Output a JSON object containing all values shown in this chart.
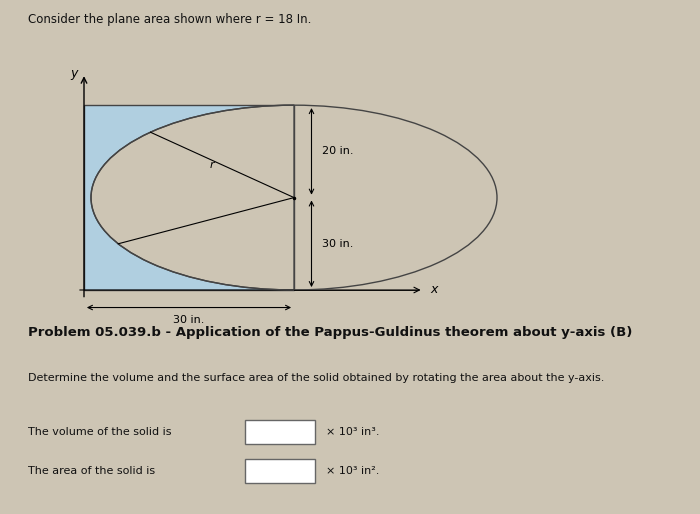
{
  "bg_color": "#cdc5b4",
  "top_panel_bg": "#cdc5b4",
  "header_text": "Consider the plane area shown where r = 18 In.",
  "shape_fill": "#b0cfe0",
  "shape_stroke": "#444444",
  "label_20in": "20 in.",
  "label_30in_vertical": "30 in.",
  "label_30in_horizontal": "30 in.",
  "label_r": "r",
  "label_x": "x",
  "label_y": "y",
  "problem_title": "Problem 05.039.b - Application of the Pappus-Guldinus theorem about y-axis (B)",
  "desc_text": "Determine the volume and the surface area of the solid obtained by rotating the area about the y-axis.",
  "volume_label": "The volume of the solid is",
  "volume_units": "× 10³ in³.",
  "area_label": "The area of the solid is",
  "area_units": "× 10³ in²."
}
